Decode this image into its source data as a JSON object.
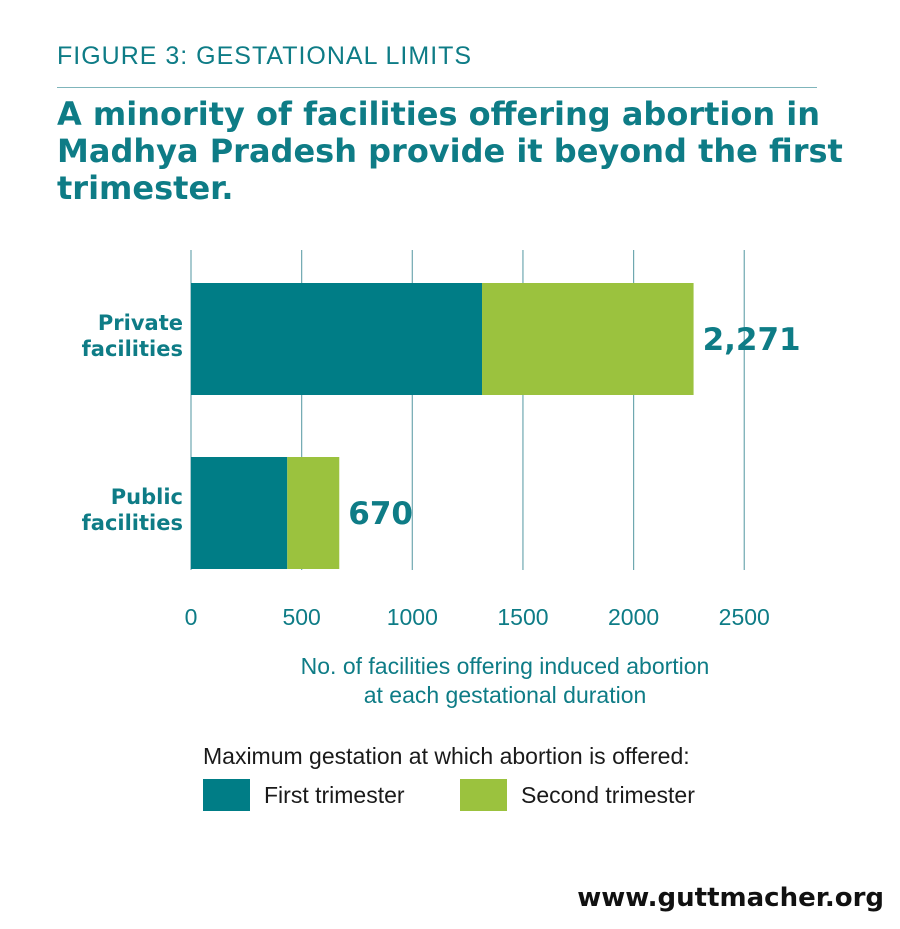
{
  "figure_label": "FIGURE 3: GESTATIONAL LIMITS",
  "headline": "A minority of facilities offering abortion in Madhya Pradesh provide it beyond the first trimester.",
  "colors": {
    "first_trimester": "#007d86",
    "second_trimester": "#9bc23e",
    "text": "#0e7c86",
    "grid": "#6fa8b0"
  },
  "chart_data": {
    "type": "bar",
    "orientation": "horizontal",
    "stacked": true,
    "categories": [
      [
        "Private",
        "facilities"
      ],
      [
        "Public",
        "facilities"
      ]
    ],
    "series": [
      {
        "name": "First trimester",
        "values": [
          1315,
          435
        ]
      },
      {
        "name": "Second trimester",
        "values": [
          956,
          235
        ]
      }
    ],
    "totals": [
      "2,271",
      "670"
    ],
    "xlim": [
      0,
      2500
    ],
    "xticks": [
      0,
      500,
      1000,
      1500,
      2000,
      2500
    ],
    "xlabel": "No. of facilities offering induced abortion at each gestational duration",
    "grid": true,
    "legend_title": "Maximum gestation at which abortion is offered:",
    "legend_position": "bottom"
  },
  "source": "www.guttmacher.org"
}
